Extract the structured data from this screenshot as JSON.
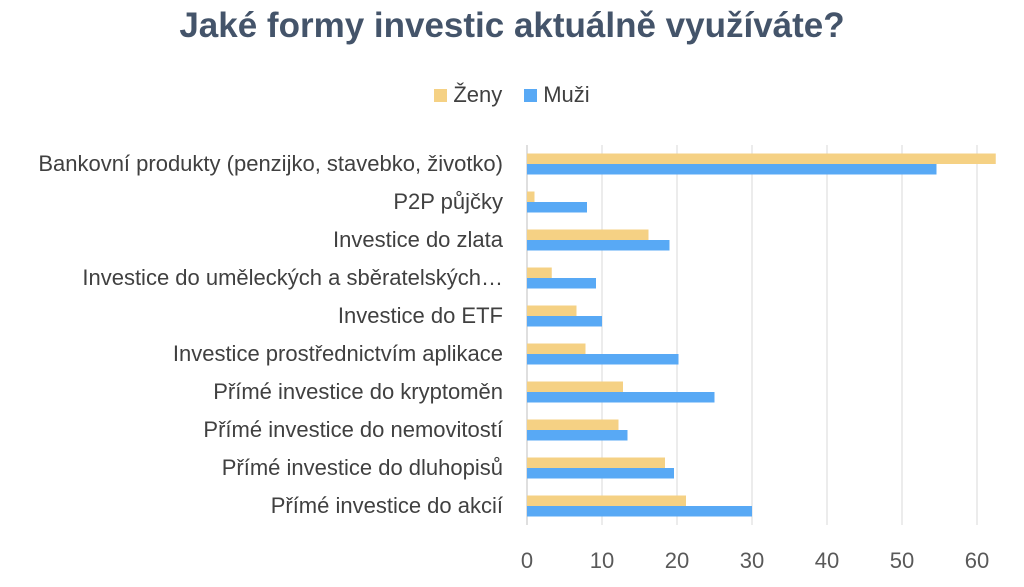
{
  "chart_data": {
    "type": "bar",
    "orientation": "horizontal",
    "title": "Jaké formy investic aktuálně využíváte?",
    "categories": [
      "Bankovní produkty (penzijko, stavebko, životko)",
      "P2P půjčky",
      "Investice do zlata",
      "Investice do uměleckých a sběratelských…",
      "Investice do ETF",
      "Investice prostřednictvím aplikace",
      "Přímé investice do kryptoměn",
      "Přímé investice do nemovitostí",
      "Přímé investice do dluhopisů",
      "Přímé investice do akcií"
    ],
    "series": [
      {
        "name": "Ženy",
        "color": "#f5d184",
        "values": [
          62.5,
          1.0,
          16.2,
          3.3,
          6.6,
          7.8,
          12.8,
          12.2,
          18.4,
          21.2
        ]
      },
      {
        "name": "Muži",
        "color": "#58a9f5",
        "values": [
          54.6,
          8.0,
          19.0,
          9.2,
          10.0,
          20.2,
          25.0,
          13.4,
          19.6,
          30.0
        ]
      }
    ],
    "xlim": [
      0,
      65
    ],
    "xticks": [
      "0",
      "10",
      "20",
      "30",
      "40",
      "50",
      "60"
    ],
    "grid": true,
    "legend_position": "top"
  }
}
